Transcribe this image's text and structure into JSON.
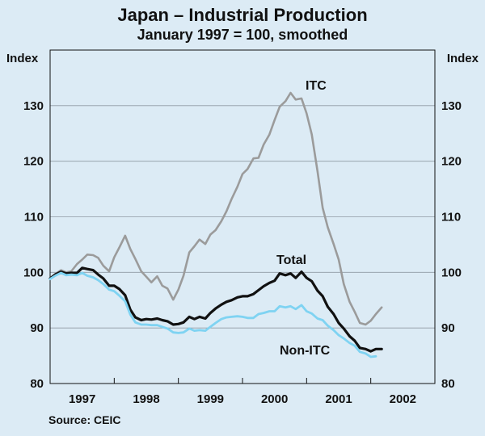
{
  "chart_data": {
    "type": "line",
    "title": "Japan – Industrial Production",
    "subtitle": "January 1997 = 100, smoothed",
    "ylabel_left": "Index",
    "ylabel_right": "Index",
    "source": "Source: CEIC",
    "ylim": [
      80,
      140
    ],
    "yticks": [
      80,
      90,
      100,
      110,
      120,
      130
    ],
    "xlim": [
      1996.5,
      2002.5
    ],
    "xticks": [
      {
        "label": "1997",
        "value": 1997
      },
      {
        "label": "1998",
        "value": 1998
      },
      {
        "label": "1999",
        "value": 1999
      },
      {
        "label": "2000",
        "value": 2000
      },
      {
        "label": "2001",
        "value": 2001
      },
      {
        "label": "2002",
        "value": 2002
      }
    ],
    "grid": true,
    "series": [
      {
        "name": "ITC",
        "label": "ITC",
        "color": "#9b9b9b",
        "points": [
          [
            1996.5,
            98.9
          ],
          [
            1996.58,
            99.7
          ],
          [
            1996.67,
            100.4
          ],
          [
            1996.75,
            100.0
          ],
          [
            1996.83,
            100.2
          ],
          [
            1996.92,
            101.5
          ],
          [
            1997.0,
            102.3
          ],
          [
            1997.08,
            103.2
          ],
          [
            1997.17,
            103.1
          ],
          [
            1997.25,
            102.6
          ],
          [
            1997.33,
            101.2
          ],
          [
            1997.42,
            100.2
          ],
          [
            1997.5,
            102.7
          ],
          [
            1997.58,
            104.5
          ],
          [
            1997.67,
            106.6
          ],
          [
            1997.75,
            104.2
          ],
          [
            1997.83,
            102.4
          ],
          [
            1997.92,
            100.2
          ],
          [
            1998.0,
            99.2
          ],
          [
            1998.08,
            98.2
          ],
          [
            1998.17,
            99.3
          ],
          [
            1998.25,
            97.6
          ],
          [
            1998.33,
            97.1
          ],
          [
            1998.42,
            95.1
          ],
          [
            1998.5,
            96.9
          ],
          [
            1998.58,
            99.4
          ],
          [
            1998.67,
            103.6
          ],
          [
            1998.75,
            104.7
          ],
          [
            1998.83,
            105.9
          ],
          [
            1998.92,
            105.1
          ],
          [
            1999.0,
            106.8
          ],
          [
            1999.08,
            107.6
          ],
          [
            1999.17,
            109.2
          ],
          [
            1999.25,
            111.0
          ],
          [
            1999.33,
            113.2
          ],
          [
            1999.42,
            115.4
          ],
          [
            1999.5,
            117.7
          ],
          [
            1999.58,
            118.6
          ],
          [
            1999.67,
            120.5
          ],
          [
            1999.75,
            120.6
          ],
          [
            1999.83,
            123.0
          ],
          [
            1999.92,
            124.8
          ],
          [
            2000.0,
            127.4
          ],
          [
            2000.08,
            129.8
          ],
          [
            2000.17,
            130.8
          ],
          [
            2000.25,
            132.3
          ],
          [
            2000.33,
            131.1
          ],
          [
            2000.42,
            131.3
          ],
          [
            2000.5,
            128.6
          ],
          [
            2000.58,
            124.8
          ],
          [
            2000.67,
            118.2
          ],
          [
            2000.75,
            111.6
          ],
          [
            2000.83,
            108.1
          ],
          [
            2000.92,
            105.1
          ],
          [
            2001.0,
            102.3
          ],
          [
            2001.08,
            97.9
          ],
          [
            2001.17,
            94.7
          ],
          [
            2001.25,
            92.9
          ],
          [
            2001.33,
            90.9
          ],
          [
            2001.42,
            90.6
          ],
          [
            2001.5,
            91.3
          ],
          [
            2001.58,
            92.5
          ],
          [
            2001.67,
            93.7
          ]
        ]
      },
      {
        "name": "Total",
        "label": "Total",
        "color": "#111111",
        "points": [
          [
            1996.5,
            98.9
          ],
          [
            1996.58,
            99.6
          ],
          [
            1996.67,
            100.1
          ],
          [
            1996.75,
            99.8
          ],
          [
            1996.83,
            99.9
          ],
          [
            1996.92,
            99.9
          ],
          [
            1997.0,
            100.8
          ],
          [
            1997.08,
            100.6
          ],
          [
            1997.17,
            100.4
          ],
          [
            1997.25,
            99.6
          ],
          [
            1997.33,
            98.9
          ],
          [
            1997.42,
            97.6
          ],
          [
            1997.5,
            97.6
          ],
          [
            1997.58,
            97.0
          ],
          [
            1997.67,
            95.9
          ],
          [
            1997.75,
            93.3
          ],
          [
            1997.83,
            91.9
          ],
          [
            1997.92,
            91.4
          ],
          [
            1998.0,
            91.6
          ],
          [
            1998.08,
            91.5
          ],
          [
            1998.17,
            91.7
          ],
          [
            1998.25,
            91.4
          ],
          [
            1998.33,
            91.2
          ],
          [
            1998.42,
            90.6
          ],
          [
            1998.5,
            90.7
          ],
          [
            1998.58,
            91.0
          ],
          [
            1998.67,
            92.0
          ],
          [
            1998.75,
            91.6
          ],
          [
            1998.83,
            92.0
          ],
          [
            1998.92,
            91.7
          ],
          [
            1999.0,
            92.7
          ],
          [
            1999.08,
            93.5
          ],
          [
            1999.17,
            94.2
          ],
          [
            1999.25,
            94.7
          ],
          [
            1999.33,
            95.0
          ],
          [
            1999.42,
            95.5
          ],
          [
            1999.5,
            95.7
          ],
          [
            1999.58,
            95.7
          ],
          [
            1999.67,
            96.1
          ],
          [
            1999.75,
            96.8
          ],
          [
            1999.83,
            97.5
          ],
          [
            1999.92,
            98.1
          ],
          [
            2000.0,
            98.5
          ],
          [
            2000.08,
            99.8
          ],
          [
            2000.17,
            99.5
          ],
          [
            2000.25,
            99.8
          ],
          [
            2000.33,
            99.0
          ],
          [
            2000.42,
            100.1
          ],
          [
            2000.5,
            99.0
          ],
          [
            2000.58,
            98.4
          ],
          [
            2000.67,
            96.7
          ],
          [
            2000.75,
            95.7
          ],
          [
            2000.83,
            93.8
          ],
          [
            2000.92,
            92.5
          ],
          [
            2001.0,
            90.9
          ],
          [
            2001.08,
            89.9
          ],
          [
            2001.17,
            88.5
          ],
          [
            2001.25,
            87.7
          ],
          [
            2001.33,
            86.4
          ],
          [
            2001.42,
            86.2
          ],
          [
            2001.5,
            85.8
          ],
          [
            2001.58,
            86.2
          ],
          [
            2001.67,
            86.2
          ]
        ]
      },
      {
        "name": "Non-ITC",
        "label": "Non-ITC",
        "color": "#7fd3f2",
        "points": [
          [
            1996.5,
            98.8
          ],
          [
            1996.58,
            99.4
          ],
          [
            1996.67,
            99.9
          ],
          [
            1996.75,
            99.5
          ],
          [
            1996.83,
            99.6
          ],
          [
            1996.92,
            99.5
          ],
          [
            1997.0,
            99.9
          ],
          [
            1997.08,
            99.4
          ],
          [
            1997.17,
            99.1
          ],
          [
            1997.25,
            98.6
          ],
          [
            1997.33,
            97.9
          ],
          [
            1997.42,
            96.9
          ],
          [
            1997.5,
            96.6
          ],
          [
            1997.58,
            95.8
          ],
          [
            1997.67,
            94.8
          ],
          [
            1997.75,
            92.4
          ],
          [
            1997.83,
            91.0
          ],
          [
            1997.92,
            90.6
          ],
          [
            1998.0,
            90.6
          ],
          [
            1998.08,
            90.5
          ],
          [
            1998.17,
            90.5
          ],
          [
            1998.25,
            90.2
          ],
          [
            1998.33,
            89.9
          ],
          [
            1998.42,
            89.2
          ],
          [
            1998.5,
            89.1
          ],
          [
            1998.58,
            89.2
          ],
          [
            1998.67,
            89.9
          ],
          [
            1998.75,
            89.5
          ],
          [
            1998.83,
            89.6
          ],
          [
            1998.92,
            89.5
          ],
          [
            1999.0,
            90.2
          ],
          [
            1999.08,
            90.9
          ],
          [
            1999.17,
            91.6
          ],
          [
            1999.25,
            91.9
          ],
          [
            1999.33,
            92.0
          ],
          [
            1999.42,
            92.1
          ],
          [
            1999.5,
            92.0
          ],
          [
            1999.58,
            91.8
          ],
          [
            1999.67,
            91.8
          ],
          [
            1999.75,
            92.5
          ],
          [
            1999.83,
            92.7
          ],
          [
            1999.92,
            93.0
          ],
          [
            2000.0,
            93.0
          ],
          [
            2000.08,
            93.9
          ],
          [
            2000.17,
            93.7
          ],
          [
            2000.25,
            93.9
          ],
          [
            2000.33,
            93.4
          ],
          [
            2000.42,
            94.1
          ],
          [
            2000.5,
            93.0
          ],
          [
            2000.58,
            92.6
          ],
          [
            2000.67,
            91.7
          ],
          [
            2000.75,
            91.4
          ],
          [
            2000.83,
            90.4
          ],
          [
            2000.92,
            89.6
          ],
          [
            2001.0,
            88.7
          ],
          [
            2001.08,
            88.1
          ],
          [
            2001.17,
            87.3
          ],
          [
            2001.25,
            86.8
          ],
          [
            2001.33,
            85.7
          ],
          [
            2001.42,
            85.4
          ],
          [
            2001.5,
            84.8
          ],
          [
            2001.58,
            84.9
          ]
        ]
      }
    ]
  }
}
